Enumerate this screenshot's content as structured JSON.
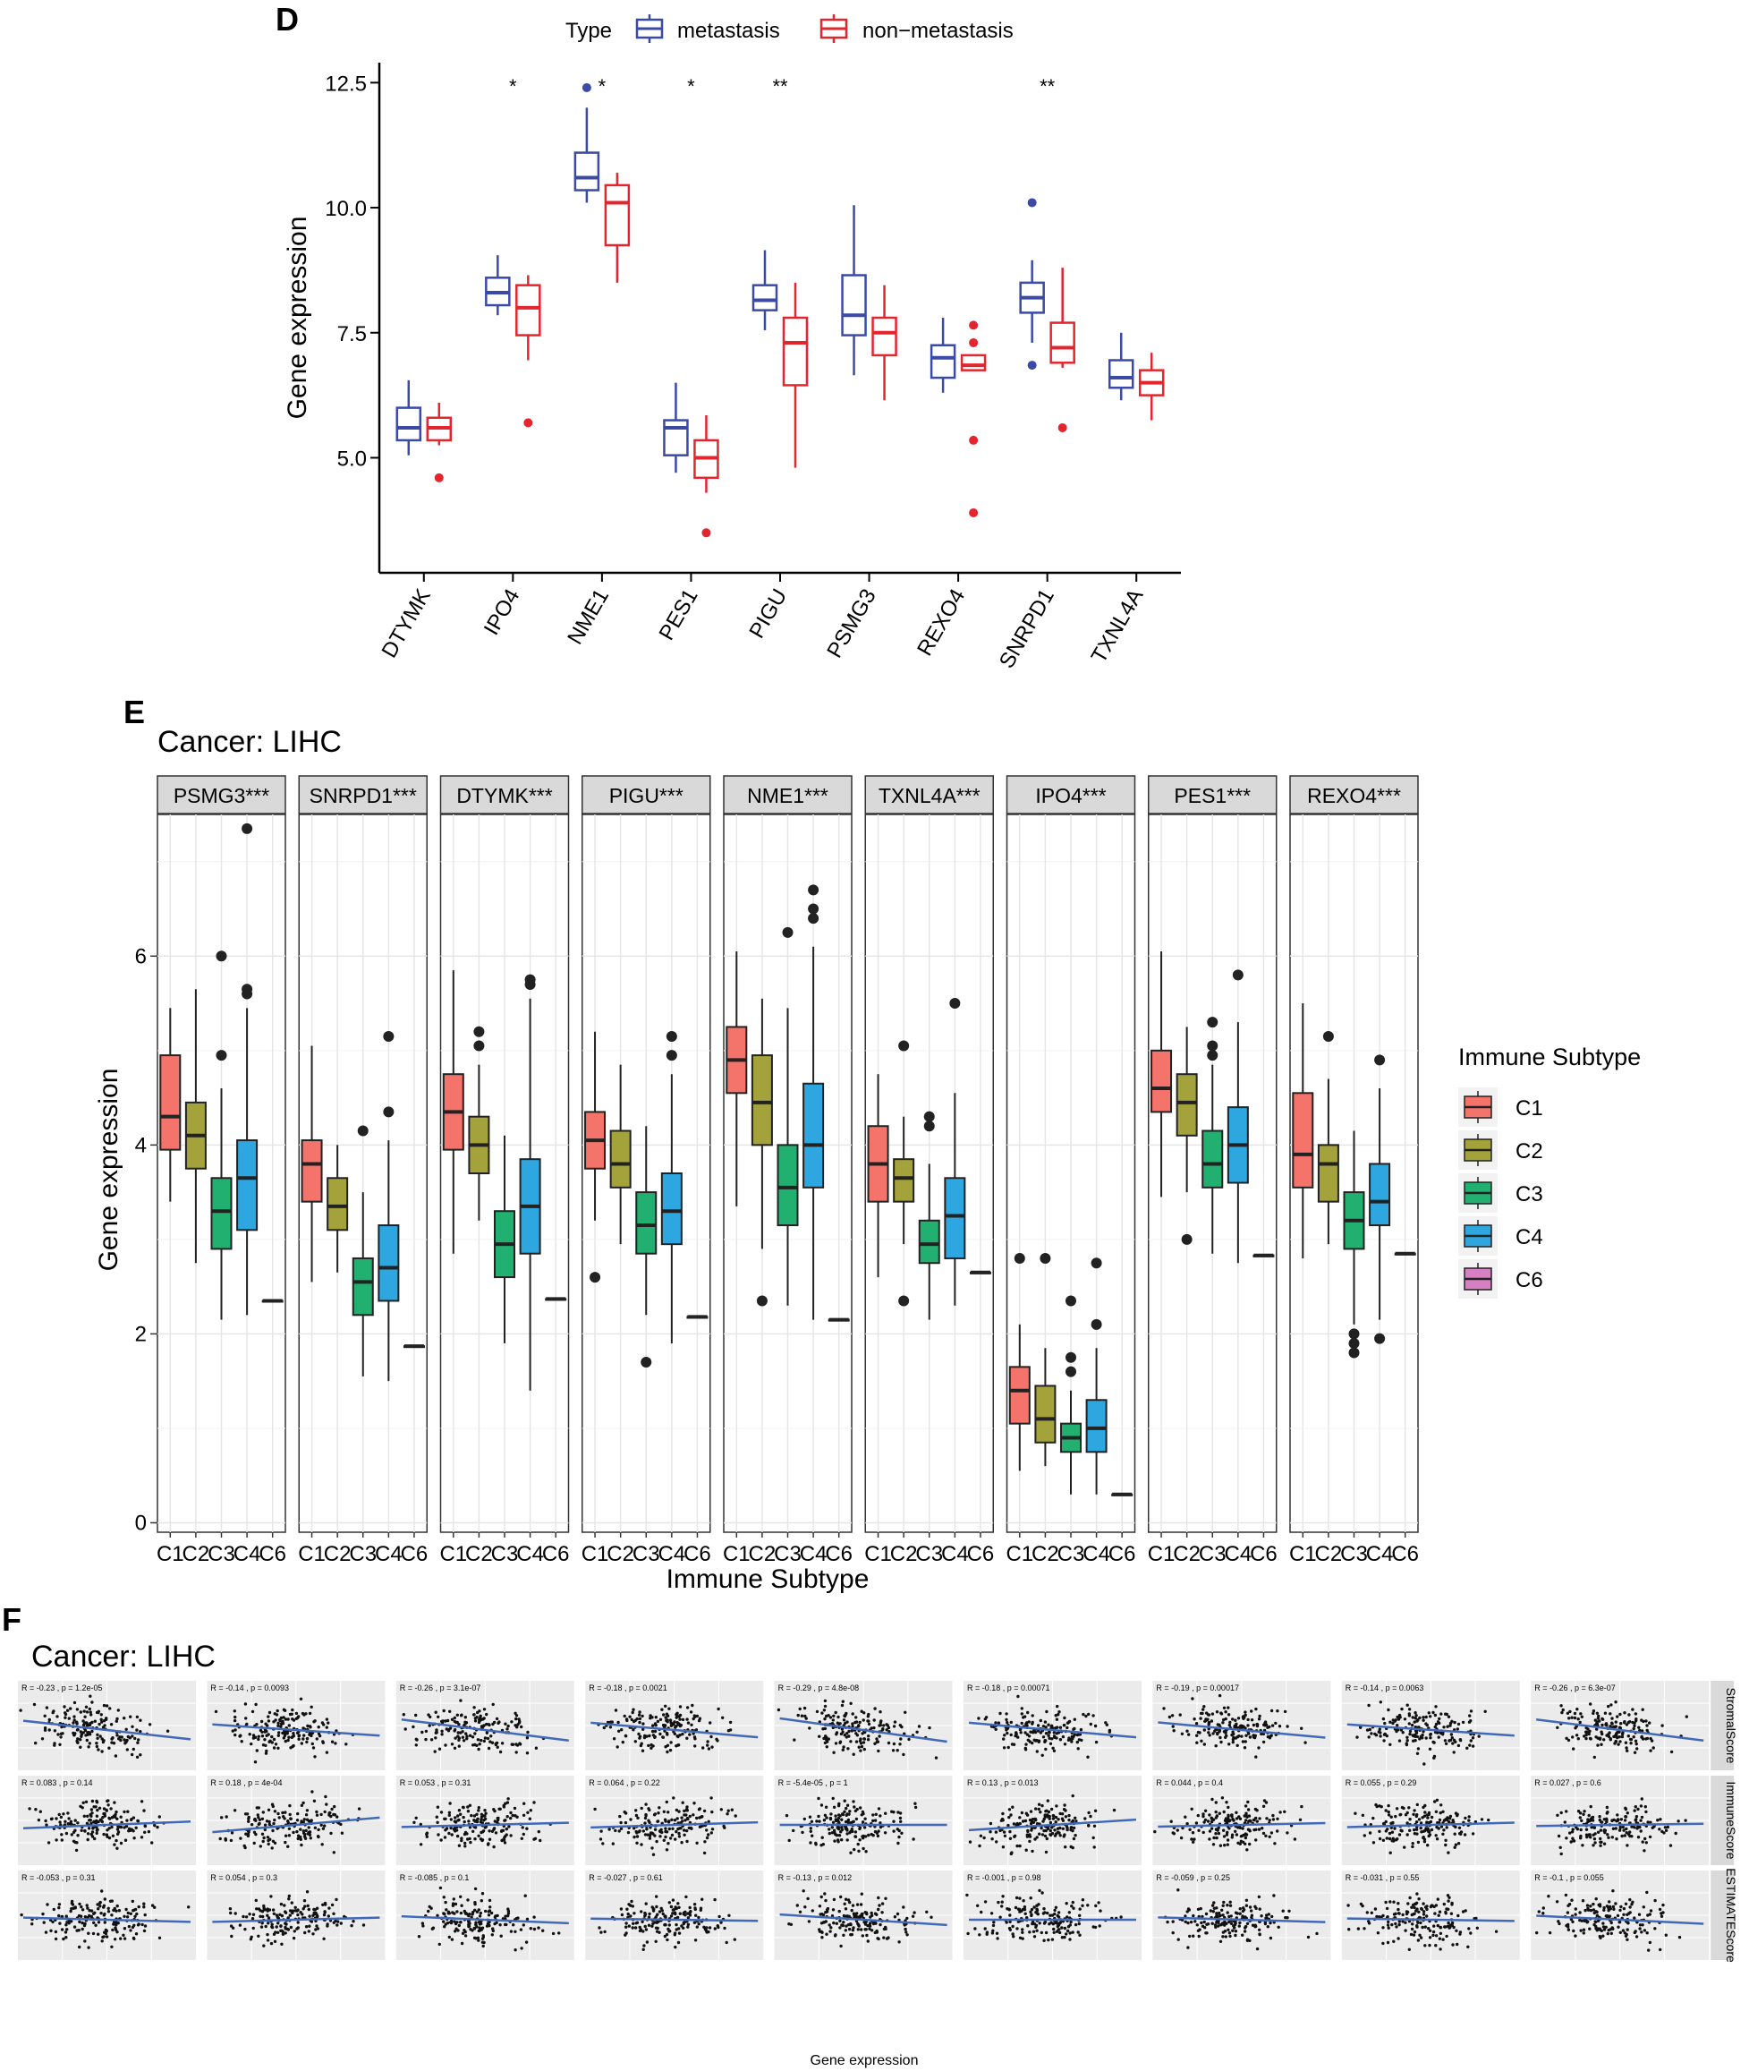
{
  "panels": {
    "d_letter": "D",
    "e_letter": "E",
    "f_letter": "F"
  },
  "colors": {
    "metastasis": "#3a4aa6",
    "non_metastasis": "#e3262d",
    "C1": "#f4736b",
    "C2": "#a3a23b",
    "C3": "#22b070",
    "C4": "#2ea6df",
    "C6": "#d77fc3",
    "regression": "#4169b8",
    "panel_bg": "#ebebeb"
  },
  "chart_data": [
    {
      "id": "D",
      "type": "box",
      "ylabel": "Gene expression",
      "ylim": [
        2.7,
        12.9
      ],
      "yticks": [
        "5.0",
        "7.5",
        "10.0",
        "12.5"
      ],
      "ytick_values": [
        5.0,
        7.5,
        10.0,
        12.5
      ],
      "legend_title": "Type",
      "legend_labels": [
        "metastasis",
        "non−metastasis"
      ],
      "categories": [
        "DTYMK",
        "IPO4",
        "NME1",
        "PES1",
        "PIGU",
        "PSMG3",
        "REXO4",
        "SNRPD1",
        "TXNL4A"
      ],
      "significance": [
        "",
        "*",
        "*",
        "*",
        "**",
        "",
        "",
        "**",
        ""
      ],
      "series": [
        {
          "name": "metastasis",
          "boxes": [
            {
              "min": 5.05,
              "q1": 5.35,
              "med": 5.6,
              "q3": 6.0,
              "max": 6.55,
              "out": []
            },
            {
              "min": 7.85,
              "q1": 8.05,
              "med": 8.3,
              "q3": 8.6,
              "max": 9.05,
              "out": []
            },
            {
              "min": 10.1,
              "q1": 10.35,
              "med": 10.6,
              "q3": 11.1,
              "max": 12.0,
              "out": [
                12.4
              ]
            },
            {
              "min": 4.7,
              "q1": 5.05,
              "med": 5.6,
              "q3": 5.75,
              "max": 6.5,
              "out": []
            },
            {
              "min": 7.55,
              "q1": 7.95,
              "med": 8.15,
              "q3": 8.45,
              "max": 9.15,
              "out": []
            },
            {
              "min": 6.65,
              "q1": 7.45,
              "med": 7.85,
              "q3": 8.65,
              "max": 10.05,
              "out": []
            },
            {
              "min": 6.3,
              "q1": 6.6,
              "med": 7.0,
              "q3": 7.25,
              "max": 7.8,
              "out": []
            },
            {
              "min": 7.3,
              "q1": 7.9,
              "med": 8.2,
              "q3": 8.5,
              "max": 8.95,
              "out": [
                6.85,
                10.1
              ]
            },
            {
              "min": 6.15,
              "q1": 6.4,
              "med": 6.6,
              "q3": 6.95,
              "max": 7.5,
              "out": []
            }
          ]
        },
        {
          "name": "non−metastasis",
          "boxes": [
            {
              "min": 5.25,
              "q1": 5.35,
              "med": 5.6,
              "q3": 5.8,
              "max": 6.1,
              "out": [
                4.6
              ]
            },
            {
              "min": 6.95,
              "q1": 7.45,
              "med": 8.0,
              "q3": 8.45,
              "max": 8.65,
              "out": [
                5.7
              ]
            },
            {
              "min": 8.5,
              "q1": 9.25,
              "med": 10.1,
              "q3": 10.45,
              "max": 10.7,
              "out": []
            },
            {
              "min": 4.3,
              "q1": 4.6,
              "med": 5.0,
              "q3": 5.35,
              "max": 5.85,
              "out": [
                3.5
              ]
            },
            {
              "min": 4.8,
              "q1": 6.45,
              "med": 7.3,
              "q3": 7.8,
              "max": 8.5,
              "out": []
            },
            {
              "min": 6.15,
              "q1": 7.05,
              "med": 7.5,
              "q3": 7.8,
              "max": 8.45,
              "out": []
            },
            {
              "min": 6.75,
              "q1": 6.75,
              "med": 6.85,
              "q3": 7.05,
              "max": 7.05,
              "out": [
                7.3,
                7.65,
                5.35,
                3.9
              ]
            },
            {
              "min": 6.8,
              "q1": 6.9,
              "med": 7.2,
              "q3": 7.7,
              "max": 8.8,
              "out": [
                5.6
              ]
            },
            {
              "min": 5.75,
              "q1": 6.25,
              "med": 6.5,
              "q3": 6.75,
              "max": 7.1,
              "out": []
            }
          ]
        }
      ]
    },
    {
      "id": "E",
      "type": "box",
      "title": "Cancer: LIHC",
      "xlabel": "Immune Subtype",
      "ylabel": "Gene expression",
      "ylim": [
        -0.1,
        7.5
      ],
      "yticks": [
        "0",
        "2",
        "4",
        "6"
      ],
      "ytick_values": [
        0,
        2,
        4,
        6
      ],
      "legend_title": "Immune Subtype",
      "subtypes": [
        "C1",
        "C2",
        "C3",
        "C4",
        "C6"
      ],
      "facets": [
        {
          "label": "PSMG3***",
          "boxes": [
            {
              "min": 3.4,
              "q1": 3.95,
              "med": 4.3,
              "q3": 4.95,
              "max": 5.45,
              "out": []
            },
            {
              "min": 2.75,
              "q1": 3.75,
              "med": 4.1,
              "q3": 4.45,
              "max": 5.65,
              "out": []
            },
            {
              "min": 2.15,
              "q1": 2.9,
              "med": 3.3,
              "q3": 3.65,
              "max": 4.6,
              "out": [
                4.95,
                6.0
              ]
            },
            {
              "min": 2.2,
              "q1": 3.1,
              "med": 3.65,
              "q3": 4.05,
              "max": 5.45,
              "out": [
                5.6,
                5.65,
                7.35
              ]
            },
            {
              "min": 2.35,
              "q1": 2.35,
              "med": 2.35,
              "q3": 2.35,
              "max": 2.35,
              "out": []
            }
          ]
        },
        {
          "label": "SNRPD1***",
          "boxes": [
            {
              "min": 2.55,
              "q1": 3.4,
              "med": 3.8,
              "q3": 4.05,
              "max": 5.05,
              "out": []
            },
            {
              "min": 2.65,
              "q1": 3.1,
              "med": 3.35,
              "q3": 3.65,
              "max": 4.0,
              "out": []
            },
            {
              "min": 1.55,
              "q1": 2.2,
              "med": 2.55,
              "q3": 2.8,
              "max": 3.5,
              "out": [
                4.15
              ]
            },
            {
              "min": 1.5,
              "q1": 2.35,
              "med": 2.7,
              "q3": 3.15,
              "max": 4.05,
              "out": [
                4.35,
                5.15
              ]
            },
            {
              "min": 1.87,
              "q1": 1.87,
              "med": 1.87,
              "q3": 1.87,
              "max": 1.87,
              "out": []
            }
          ]
        },
        {
          "label": "DTYMK***",
          "boxes": [
            {
              "min": 2.85,
              "q1": 3.95,
              "med": 4.35,
              "q3": 4.75,
              "max": 5.85,
              "out": []
            },
            {
              "min": 3.2,
              "q1": 3.7,
              "med": 4.0,
              "q3": 4.3,
              "max": 4.85,
              "out": [
                5.05,
                5.2
              ]
            },
            {
              "min": 1.9,
              "q1": 2.6,
              "med": 2.95,
              "q3": 3.3,
              "max": 4.1,
              "out": []
            },
            {
              "min": 1.4,
              "q1": 2.85,
              "med": 3.35,
              "q3": 3.85,
              "max": 5.55,
              "out": [
                5.7,
                5.75
              ]
            },
            {
              "min": 2.37,
              "q1": 2.37,
              "med": 2.37,
              "q3": 2.37,
              "max": 2.37,
              "out": []
            }
          ]
        },
        {
          "label": "PIGU***",
          "boxes": [
            {
              "min": 3.2,
              "q1": 3.75,
              "med": 4.05,
              "q3": 4.35,
              "max": 5.2,
              "out": [
                2.6
              ]
            },
            {
              "min": 2.95,
              "q1": 3.55,
              "med": 3.8,
              "q3": 4.15,
              "max": 4.85,
              "out": []
            },
            {
              "min": 2.2,
              "q1": 2.85,
              "med": 3.15,
              "q3": 3.5,
              "max": 4.2,
              "out": [
                1.7
              ]
            },
            {
              "min": 1.9,
              "q1": 2.95,
              "med": 3.3,
              "q3": 3.7,
              "max": 4.75,
              "out": [
                4.95,
                5.15
              ]
            },
            {
              "min": 2.18,
              "q1": 2.18,
              "med": 2.18,
              "q3": 2.18,
              "max": 2.18,
              "out": []
            }
          ]
        },
        {
          "label": "NME1***",
          "boxes": [
            {
              "min": 3.35,
              "q1": 4.55,
              "med": 4.9,
              "q3": 5.25,
              "max": 6.05,
              "out": []
            },
            {
              "min": 2.9,
              "q1": 4.0,
              "med": 4.45,
              "q3": 4.95,
              "max": 5.55,
              "out": [
                2.35
              ]
            },
            {
              "min": 2.3,
              "q1": 3.15,
              "med": 3.55,
              "q3": 4.0,
              "max": 5.45,
              "out": [
                6.25
              ]
            },
            {
              "min": 2.15,
              "q1": 3.55,
              "med": 4.0,
              "q3": 4.65,
              "max": 6.1,
              "out": [
                6.4,
                6.5,
                6.7
              ]
            },
            {
              "min": 2.15,
              "q1": 2.15,
              "med": 2.15,
              "q3": 2.15,
              "max": 2.15,
              "out": []
            }
          ]
        },
        {
          "label": "TXNL4A***",
          "boxes": [
            {
              "min": 2.6,
              "q1": 3.4,
              "med": 3.8,
              "q3": 4.2,
              "max": 4.75,
              "out": []
            },
            {
              "min": 2.95,
              "q1": 3.4,
              "med": 3.65,
              "q3": 3.85,
              "max": 4.3,
              "out": [
                2.35,
                5.05
              ]
            },
            {
              "min": 2.15,
              "q1": 2.75,
              "med": 2.95,
              "q3": 3.2,
              "max": 3.8,
              "out": [
                4.2,
                4.3
              ]
            },
            {
              "min": 2.3,
              "q1": 2.8,
              "med": 3.25,
              "q3": 3.65,
              "max": 4.55,
              "out": [
                5.5
              ]
            },
            {
              "min": 2.65,
              "q1": 2.65,
              "med": 2.65,
              "q3": 2.65,
              "max": 2.65,
              "out": []
            }
          ]
        },
        {
          "label": "IPO4***",
          "boxes": [
            {
              "min": 0.55,
              "q1": 1.05,
              "med": 1.4,
              "q3": 1.65,
              "max": 2.1,
              "out": [
                2.8
              ]
            },
            {
              "min": 0.6,
              "q1": 0.85,
              "med": 1.1,
              "q3": 1.45,
              "max": 1.85,
              "out": [
                2.8
              ]
            },
            {
              "min": 0.3,
              "q1": 0.75,
              "med": 0.9,
              "q3": 1.05,
              "max": 1.4,
              "out": [
                1.6,
                1.75,
                2.35
              ]
            },
            {
              "min": 0.3,
              "q1": 0.75,
              "med": 1.0,
              "q3": 1.3,
              "max": 1.85,
              "out": [
                2.1,
                2.75
              ]
            },
            {
              "min": 0.3,
              "q1": 0.3,
              "med": 0.3,
              "q3": 0.3,
              "max": 0.3,
              "out": []
            }
          ]
        },
        {
          "label": "PES1***",
          "boxes": [
            {
              "min": 3.45,
              "q1": 4.35,
              "med": 4.6,
              "q3": 5.0,
              "max": 6.05,
              "out": []
            },
            {
              "min": 3.5,
              "q1": 4.1,
              "med": 4.45,
              "q3": 4.75,
              "max": 5.25,
              "out": [
                3.0
              ]
            },
            {
              "min": 2.85,
              "q1": 3.55,
              "med": 3.8,
              "q3": 4.15,
              "max": 4.85,
              "out": [
                4.95,
                5.05,
                5.3
              ]
            },
            {
              "min": 2.75,
              "q1": 3.6,
              "med": 4.0,
              "q3": 4.4,
              "max": 5.3,
              "out": [
                5.8
              ]
            },
            {
              "min": 2.83,
              "q1": 2.83,
              "med": 2.83,
              "q3": 2.83,
              "max": 2.83,
              "out": []
            }
          ]
        },
        {
          "label": "REXO4***",
          "boxes": [
            {
              "min": 2.8,
              "q1": 3.55,
              "med": 3.9,
              "q3": 4.55,
              "max": 5.5,
              "out": []
            },
            {
              "min": 2.95,
              "q1": 3.4,
              "med": 3.8,
              "q3": 4.0,
              "max": 4.7,
              "out": [
                5.15
              ]
            },
            {
              "min": 2.1,
              "q1": 2.9,
              "med": 3.2,
              "q3": 3.5,
              "max": 4.15,
              "out": [
                1.8,
                1.9,
                2.0
              ]
            },
            {
              "min": 2.15,
              "q1": 3.15,
              "med": 3.4,
              "q3": 3.8,
              "max": 4.6,
              "out": [
                1.95,
                4.9
              ]
            },
            {
              "min": 2.85,
              "q1": 2.85,
              "med": 2.85,
              "q3": 2.85,
              "max": 2.85,
              "out": []
            }
          ]
        }
      ]
    },
    {
      "id": "F",
      "type": "scatter",
      "title": "Cancer: LIHC",
      "xlabel": "Gene expression",
      "rows": [
        "StromalScore",
        "ImmuneScore",
        "ESTIMATEScore"
      ],
      "cells": [
        [
          {
            "label": "R = -0.23 , p = 1.2e-05",
            "slope": -0.23
          },
          {
            "label": "R = -0.14 , p = 0.0093",
            "slope": -0.14
          },
          {
            "label": "R = -0.26 , p = 3.1e-07",
            "slope": -0.26
          },
          {
            "label": "R = -0.18 , p = 0.0021",
            "slope": -0.18
          },
          {
            "label": "R = -0.29 , p = 4.8e-08",
            "slope": -0.29
          },
          {
            "label": "R = -0.18 , p = 0.00071",
            "slope": -0.18
          },
          {
            "label": "R = -0.19 , p = 0.00017",
            "slope": -0.19
          },
          {
            "label": "R = -0.14 , p = 0.0063",
            "slope": -0.14
          },
          {
            "label": "R = -0.26 , p = 6.3e-07",
            "slope": -0.26
          }
        ],
        [
          {
            "label": "R = 0.083 , p = 0.14",
            "slope": 0.083
          },
          {
            "label": "R = 0.18 , p = 4e-04",
            "slope": 0.18
          },
          {
            "label": "R = 0.053 , p = 0.31",
            "slope": 0.053
          },
          {
            "label": "R = 0.064 , p = 0.22",
            "slope": 0.064
          },
          {
            "label": "R = -5.4e-05 , p = 1",
            "slope": 0.0
          },
          {
            "label": "R = 0.13 , p = 0.013",
            "slope": 0.13
          },
          {
            "label": "R = 0.044 , p = 0.4",
            "slope": 0.044
          },
          {
            "label": "R = 0.055 , p = 0.29",
            "slope": 0.055
          },
          {
            "label": "R = 0.027 , p = 0.6",
            "slope": 0.027
          }
        ],
        [
          {
            "label": "R = -0.053 , p = 0.31",
            "slope": -0.053
          },
          {
            "label": "R = 0.054 , p = 0.3",
            "slope": 0.054
          },
          {
            "label": "R = -0.085 , p = 0.1",
            "slope": -0.085
          },
          {
            "label": "R = -0.027 , p = 0.61",
            "slope": -0.027
          },
          {
            "label": "R = -0.13 , p = 0.012",
            "slope": -0.13
          },
          {
            "label": "R = -0.001 , p = 0.98",
            "slope": -0.001
          },
          {
            "label": "R = -0.059 , p = 0.25",
            "slope": -0.059
          },
          {
            "label": "R = -0.031 , p = 0.55",
            "slope": -0.031
          },
          {
            "label": "R = -0.1 , p = 0.055",
            "slope": -0.1
          }
        ]
      ]
    }
  ]
}
